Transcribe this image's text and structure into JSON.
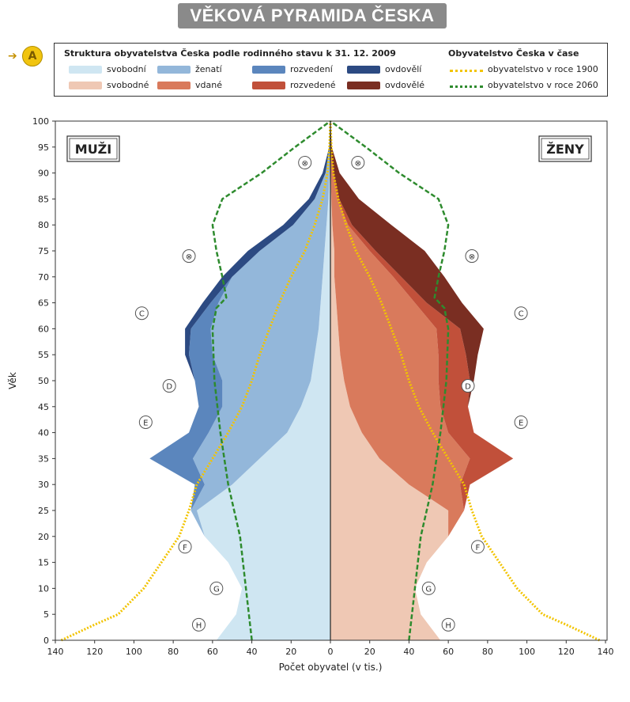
{
  "title": "VĚKOVÁ PYRAMIDA ČESKA",
  "section_marker": {
    "label": "A",
    "icon": "arrow-right-icon"
  },
  "legend": {
    "structure_title": "Struktura obyvatelstva Česka podle rodinného stavu k 31. 12. 2009",
    "time_title": "Obyvatelstvo Česka v čase",
    "men_items": [
      {
        "label": "svobodní",
        "color": "#cfe6f2"
      },
      {
        "label": "ženatí",
        "color": "#93b7da"
      },
      {
        "label": "rozvedení",
        "color": "#5b86bd"
      },
      {
        "label": "ovdovělí",
        "color": "#2c4a82"
      }
    ],
    "women_items": [
      {
        "label": "svobodné",
        "color": "#efc8b4"
      },
      {
        "label": "vdané",
        "color": "#d97a5c"
      },
      {
        "label": "rozvedené",
        "color": "#c1503a"
      },
      {
        "label": "ovdovělé",
        "color": "#7a2e22"
      }
    ],
    "time_items": [
      {
        "label": "obyvatelstvo v roce 1900",
        "color": "#f2c400"
      },
      {
        "label": "obyvatelstvo v roce 2060",
        "color": "#2e8b2e"
      }
    ]
  },
  "chart_data": {
    "type": "population-pyramid",
    "ylabel": "Věk",
    "xlabel": "Počet obyvatel (v tis.)",
    "x_ticks_left": [
      "140",
      "120",
      "100",
      "80",
      "60",
      "40",
      "20",
      "0"
    ],
    "x_ticks_right": [
      "0",
      "20",
      "40",
      "60",
      "80",
      "100",
      "120",
      "140"
    ],
    "y_ticks": [
      "0",
      "5",
      "10",
      "15",
      "20",
      "25",
      "30",
      "35",
      "40",
      "45",
      "50",
      "55",
      "60",
      "65",
      "70",
      "75",
      "80",
      "85",
      "90",
      "95",
      "100"
    ],
    "xlim": [
      0,
      140
    ],
    "ylim": [
      0,
      100
    ],
    "side_labels": {
      "left": "MUŽI",
      "right": "ŽENY"
    },
    "age_points": [
      0,
      5,
      10,
      15,
      20,
      25,
      30,
      35,
      40,
      45,
      50,
      55,
      60,
      65,
      70,
      75,
      80,
      85,
      90,
      95,
      100
    ],
    "men": {
      "svobodni": [
        58,
        48,
        45,
        52,
        64,
        68,
        50,
        36,
        22,
        15,
        10,
        8,
        6,
        5,
        4,
        3,
        2,
        1,
        0.5,
        0.1,
        0
      ],
      "zenati": [
        0,
        0,
        0,
        0,
        0,
        3,
        14,
        34,
        40,
        40,
        45,
        52,
        55,
        52,
        46,
        33,
        17,
        7,
        2,
        0.3,
        0
      ],
      "rozvedeni": [
        0,
        0,
        0,
        0,
        0,
        0,
        5,
        22,
        10,
        12,
        14,
        12,
        10,
        4,
        0,
        0,
        0,
        0,
        0,
        0,
        0
      ],
      "ovdoveli": [
        0,
        0,
        0,
        0,
        0,
        0,
        0,
        0,
        0,
        0,
        0,
        2,
        3,
        4,
        5,
        6,
        5,
        3,
        1.5,
        0.2,
        0
      ]
    },
    "women": {
      "svobodne": [
        56,
        46,
        43,
        49,
        60,
        60,
        40,
        25,
        16,
        10,
        7,
        5,
        4,
        3,
        2,
        2,
        1,
        0.5,
        0.2,
        0,
        0
      ],
      "vdane": [
        0,
        0,
        0,
        0,
        0,
        8,
        26,
        46,
        44,
        46,
        48,
        50,
        50,
        40,
        30,
        18,
        8,
        3,
        1,
        0.2,
        0
      ],
      "rozvedene": [
        0,
        0,
        0,
        0,
        0,
        0,
        5,
        22,
        13,
        14,
        16,
        14,
        12,
        6,
        4,
        3,
        2,
        1,
        0.5,
        0,
        0
      ],
      "ovdovele": [
        0,
        0,
        0,
        0,
        0,
        0,
        0,
        0,
        0,
        0,
        2,
        6,
        12,
        18,
        22,
        25,
        20,
        10,
        3,
        0.5,
        0
      ]
    },
    "series_1900": {
      "name": "obyvatelstvo v roce 1900",
      "ages": [
        0,
        3,
        5,
        10,
        15,
        20,
        25,
        30,
        35,
        40,
        45,
        50,
        55,
        60,
        65,
        70,
        75,
        80,
        85,
        90,
        95,
        100
      ],
      "values": [
        137,
        120,
        108,
        95,
        86,
        77,
        72,
        68,
        60,
        52,
        45,
        40,
        36,
        31,
        26,
        20,
        13,
        8,
        4,
        1.5,
        0.5,
        0
      ]
    },
    "series_2060": {
      "name": "obyvatelstvo v roce 2060",
      "ages": [
        0,
        10,
        20,
        30,
        40,
        50,
        60,
        64,
        66,
        70,
        75,
        80,
        85,
        90,
        95,
        100
      ],
      "values": [
        40,
        43,
        46,
        52,
        56,
        59,
        60,
        58,
        53,
        55,
        58,
        60,
        55,
        35,
        18,
        0
      ]
    },
    "annotations_men": [
      {
        "label": "⊗",
        "age": 92,
        "value": 13
      },
      {
        "label": "⊗",
        "age": 74,
        "value": 72
      },
      {
        "label": "C",
        "age": 63,
        "value": 96
      },
      {
        "label": "D",
        "age": 49,
        "value": 82
      },
      {
        "label": "E",
        "age": 42,
        "value": 94
      },
      {
        "label": "F",
        "age": 18,
        "value": 74
      },
      {
        "label": "G",
        "age": 10,
        "value": 58
      },
      {
        "label": "H",
        "age": 3,
        "value": 67
      }
    ],
    "annotations_women": [
      {
        "label": "⊗",
        "age": 92,
        "value": 14
      },
      {
        "label": "⊗",
        "age": 74,
        "value": 72
      },
      {
        "label": "C",
        "age": 63,
        "value": 97
      },
      {
        "label": "D",
        "age": 49,
        "value": 70
      },
      {
        "label": "E",
        "age": 42,
        "value": 97
      },
      {
        "label": "F",
        "age": 18,
        "value": 75
      },
      {
        "label": "G",
        "age": 10,
        "value": 50
      },
      {
        "label": "H",
        "age": 3,
        "value": 60
      }
    ]
  }
}
